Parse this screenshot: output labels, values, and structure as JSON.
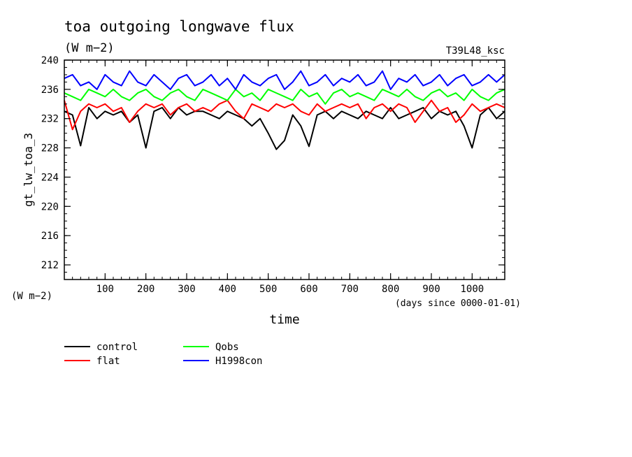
{
  "chart_data": {
    "type": "line",
    "title": "toa outgoing longwave flux",
    "subtitle": "(W m−2)",
    "run_label": "T39L48_ksc",
    "ylabel": "gt_lw_toa_3",
    "yunit": "(W m−2)",
    "xlabel": "time",
    "xunit": "(days since 0000-01-01)",
    "xlim": [
      0,
      1080
    ],
    "ylim": [
      210,
      240
    ],
    "xticks": [
      100,
      200,
      300,
      400,
      500,
      600,
      700,
      800,
      900,
      1000
    ],
    "yticks": [
      212,
      216,
      220,
      224,
      228,
      232,
      236,
      240
    ],
    "grid": false,
    "legend_placement": "below",
    "series": [
      {
        "name": "control",
        "color": "#000000",
        "x": [
          0,
          20,
          40,
          60,
          80,
          100,
          120,
          140,
          160,
          180,
          200,
          220,
          240,
          260,
          280,
          300,
          320,
          340,
          360,
          380,
          400,
          420,
          440,
          460,
          480,
          500,
          520,
          540,
          560,
          580,
          600,
          620,
          640,
          660,
          680,
          700,
          720,
          740,
          760,
          780,
          800,
          820,
          840,
          860,
          880,
          900,
          920,
          940,
          960,
          980,
          1000,
          1020,
          1040,
          1060,
          1080
        ],
        "values": [
          233,
          232.5,
          228.3,
          233.5,
          232,
          233,
          232.5,
          233,
          231.5,
          232.5,
          228,
          233,
          233.5,
          232,
          233.5,
          232.5,
          233,
          233,
          232.5,
          232,
          233,
          232.5,
          232,
          231,
          232,
          230,
          227.8,
          229,
          232.5,
          231,
          228.2,
          232.5,
          233,
          232,
          233,
          232.5,
          232,
          233,
          232.5,
          232,
          233.5,
          232,
          232.5,
          233,
          233.5,
          232,
          233,
          232.5,
          233,
          231,
          228,
          232.5,
          233.5,
          232,
          233
        ]
      },
      {
        "name": "flat",
        "color": "#ff0000",
        "x": [
          0,
          20,
          40,
          60,
          80,
          100,
          120,
          140,
          160,
          180,
          200,
          220,
          240,
          260,
          280,
          300,
          320,
          340,
          360,
          380,
          400,
          420,
          440,
          460,
          480,
          500,
          520,
          540,
          560,
          580,
          600,
          620,
          640,
          660,
          680,
          700,
          720,
          740,
          760,
          780,
          800,
          820,
          840,
          860,
          880,
          900,
          920,
          940,
          960,
          980,
          1000,
          1020,
          1040,
          1060,
          1080
        ],
        "values": [
          234.5,
          230.5,
          233,
          234,
          233.5,
          234,
          233,
          233.5,
          231.5,
          233,
          234,
          233.5,
          234,
          232.5,
          233.5,
          234,
          233,
          233.5,
          233,
          234,
          234.5,
          233,
          232,
          234,
          233.5,
          233,
          234,
          233.5,
          234,
          233,
          232.5,
          234,
          233,
          233.5,
          234,
          233.5,
          234,
          232,
          233.5,
          234,
          233,
          234,
          233.5,
          231.5,
          233,
          234.5,
          233,
          233.5,
          231.5,
          232.5,
          234,
          233,
          233.5,
          234,
          233.5
        ]
      },
      {
        "name": "Qobs",
        "color": "#00ff00",
        "x": [
          0,
          20,
          40,
          60,
          80,
          100,
          120,
          140,
          160,
          180,
          200,
          220,
          240,
          260,
          280,
          300,
          320,
          340,
          360,
          380,
          400,
          420,
          440,
          460,
          480,
          500,
          520,
          540,
          560,
          580,
          600,
          620,
          640,
          660,
          680,
          700,
          720,
          740,
          760,
          780,
          800,
          820,
          840,
          860,
          880,
          900,
          920,
          940,
          960,
          980,
          1000,
          1020,
          1040,
          1060,
          1080
        ],
        "values": [
          235.5,
          235,
          234.5,
          236,
          235.5,
          235,
          236,
          235,
          234.5,
          235.5,
          236,
          235,
          234.5,
          235.5,
          236,
          235,
          234.5,
          236,
          235.5,
          235,
          234.5,
          236,
          235,
          235.5,
          234.5,
          236,
          235.5,
          235,
          234.5,
          236,
          235,
          235.5,
          234,
          235.5,
          236,
          235,
          235.5,
          235,
          234.5,
          236,
          235.5,
          235,
          236,
          235,
          234.5,
          235.5,
          236,
          235,
          235.5,
          234.5,
          236,
          235,
          234.5,
          235.5,
          236
        ]
      },
      {
        "name": "H1998con",
        "color": "#0000ff",
        "x": [
          0,
          20,
          40,
          60,
          80,
          100,
          120,
          140,
          160,
          180,
          200,
          220,
          240,
          260,
          280,
          300,
          320,
          340,
          360,
          380,
          400,
          420,
          440,
          460,
          480,
          500,
          520,
          540,
          560,
          580,
          600,
          620,
          640,
          660,
          680,
          700,
          720,
          740,
          760,
          780,
          800,
          820,
          840,
          860,
          880,
          900,
          920,
          940,
          960,
          980,
          1000,
          1020,
          1040,
          1060,
          1080
        ],
        "values": [
          237.5,
          238,
          236.5,
          237,
          236,
          238,
          237,
          236.5,
          238.5,
          237,
          236.5,
          238,
          237,
          236,
          237.5,
          238,
          236.5,
          237,
          238,
          236.5,
          237.5,
          236,
          238,
          237,
          236.5,
          237.5,
          238,
          236,
          237,
          238.5,
          236.5,
          237,
          238,
          236.5,
          237.5,
          237,
          238,
          236.5,
          237,
          238.5,
          236,
          237.5,
          237,
          238,
          236.5,
          237,
          238,
          236.5,
          237.5,
          238,
          236.5,
          237,
          238,
          237,
          238
        ]
      }
    ]
  }
}
